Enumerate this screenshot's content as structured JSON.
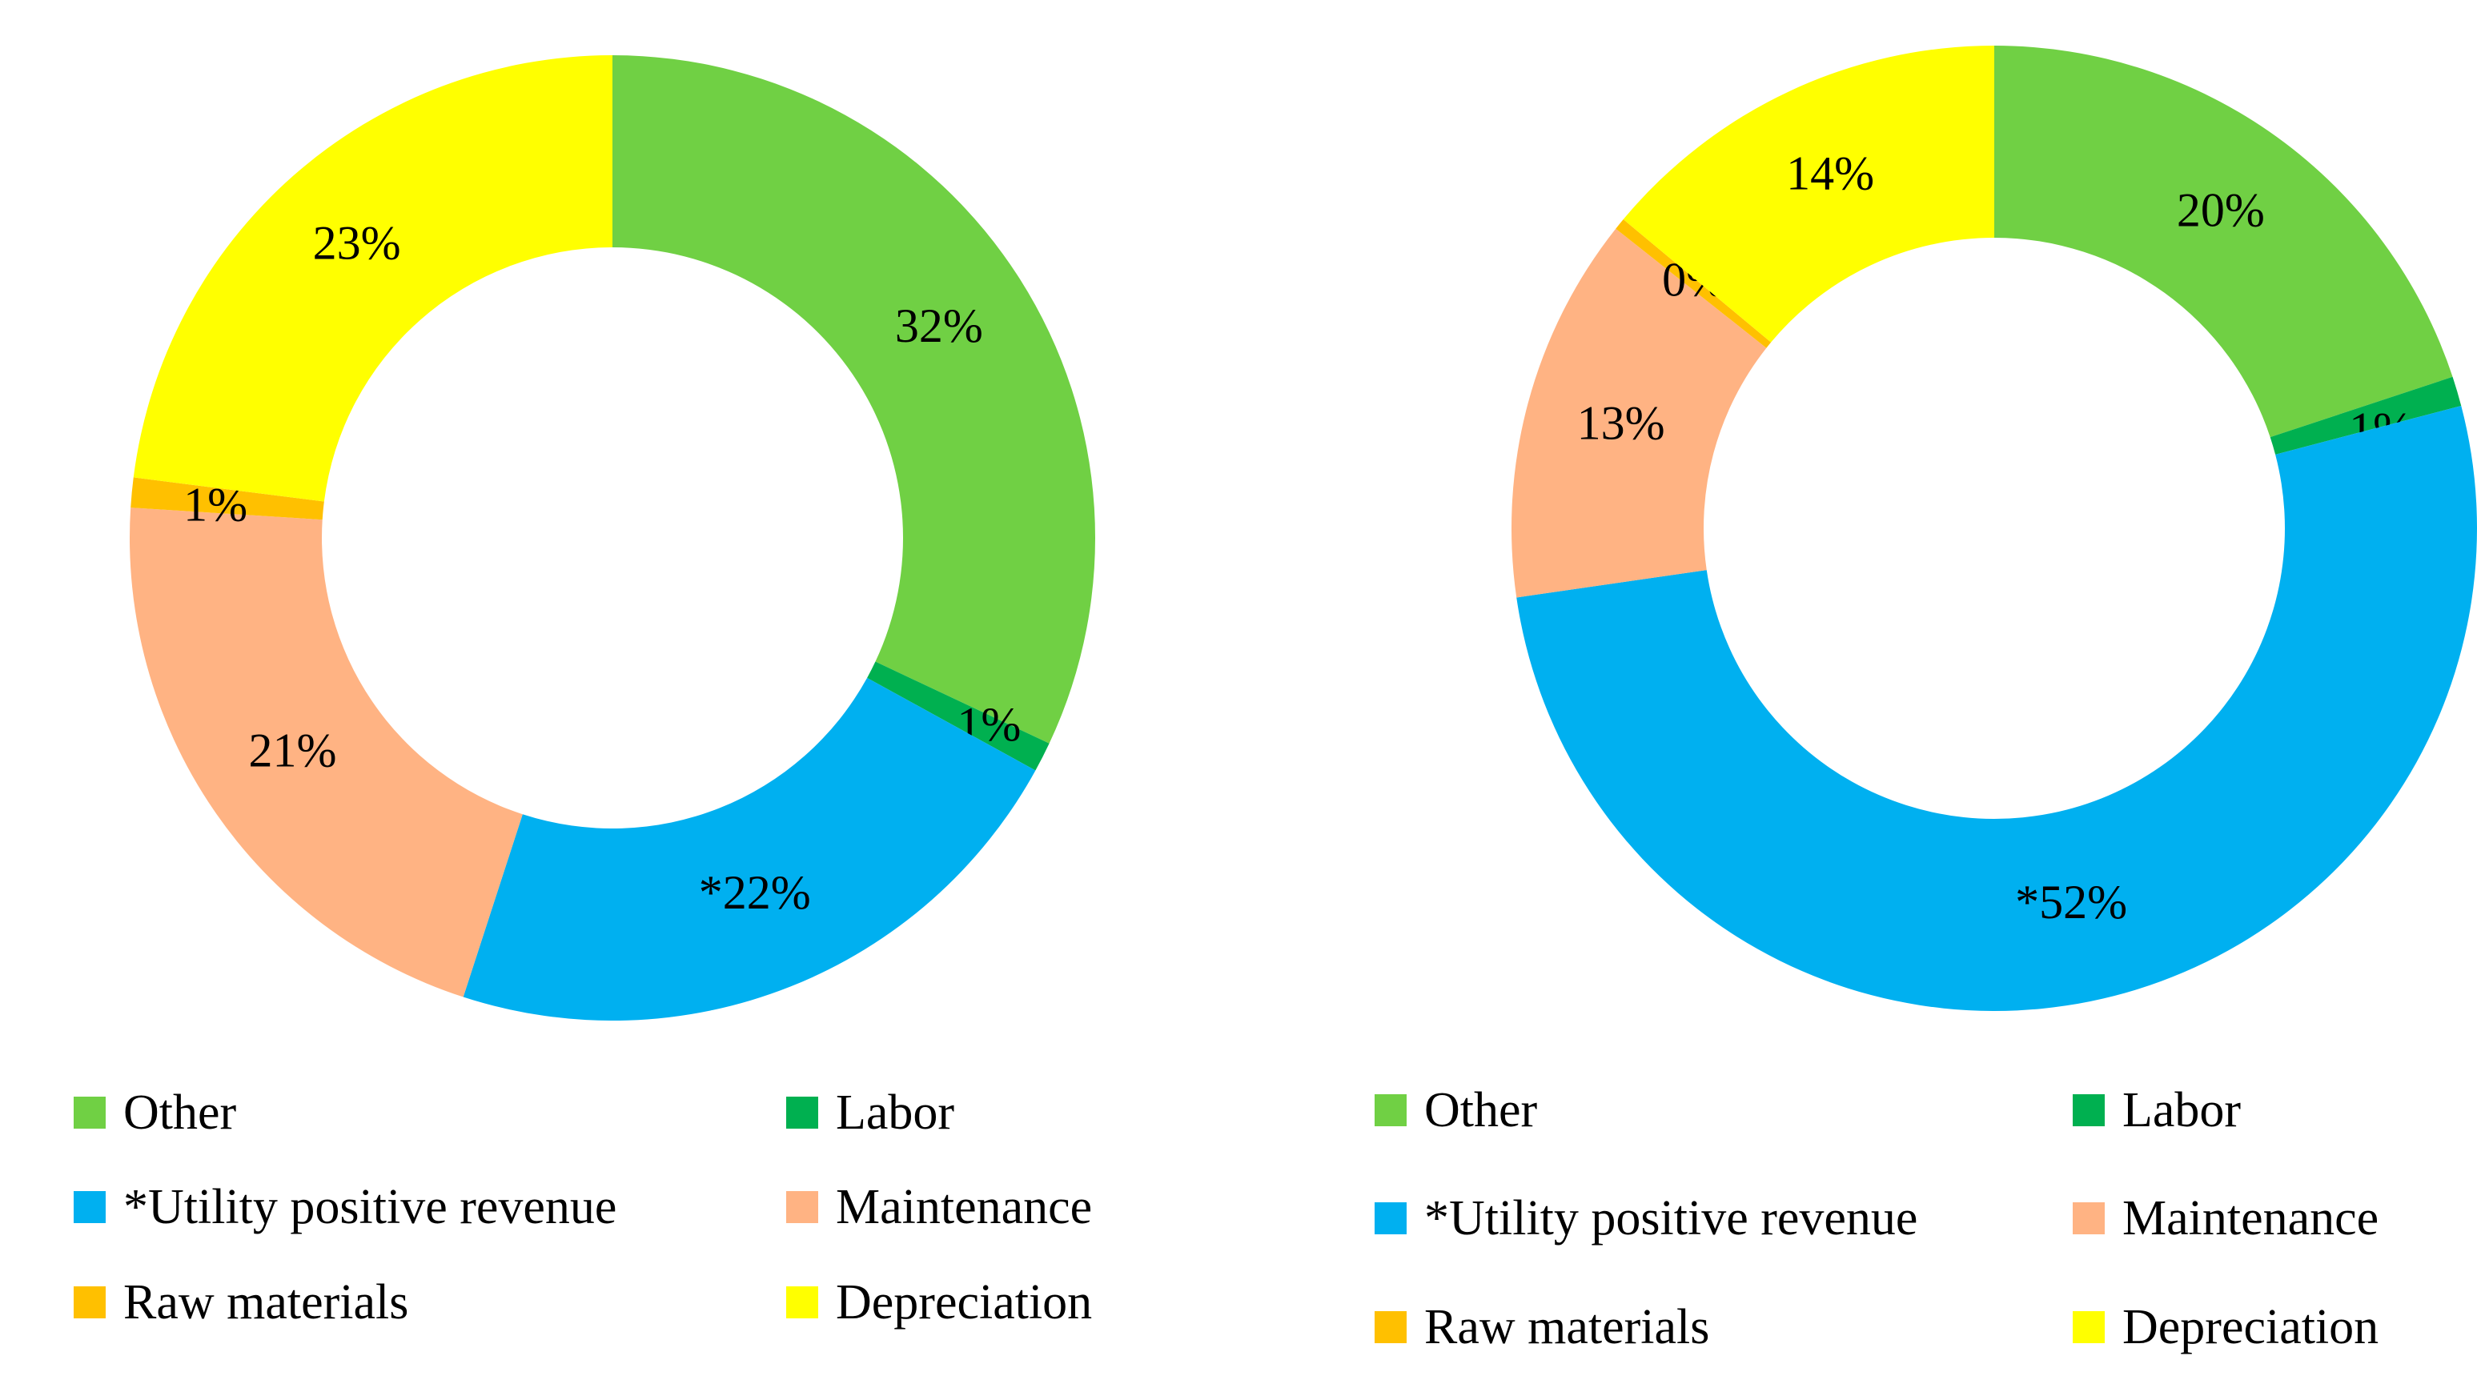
{
  "colors": {
    "other": "#70D044",
    "labor": "#00B050",
    "utility": "#00B0F0",
    "maintenance": "#FFB383",
    "raw_materials": "#FFC000",
    "depreciation": "#FFFF00"
  },
  "chart_data": [
    {
      "type": "pie",
      "subtype": "donut",
      "slices": [
        {
          "key": "other",
          "label": "Other",
          "value": 32,
          "display": "32%"
        },
        {
          "key": "labor",
          "label": "Labor",
          "value": 1,
          "display": "1%"
        },
        {
          "key": "utility",
          "label": "*Utility positive revenue",
          "value": 22,
          "display": "*22%"
        },
        {
          "key": "maintenance",
          "label": "Maintenance",
          "value": 21,
          "display": "21%"
        },
        {
          "key": "raw_materials",
          "label": "Raw materials",
          "value": 1,
          "display": "1%"
        },
        {
          "key": "depreciation",
          "label": "Depreciation",
          "value": 23,
          "display": "23%"
        }
      ],
      "legend": [
        "Other",
        "Labor",
        "*Utility positive revenue",
        "Maintenance",
        "Raw materials",
        "Depreciation"
      ],
      "legend_placement": "bottom"
    },
    {
      "type": "pie",
      "subtype": "donut",
      "slices": [
        {
          "key": "other",
          "label": "Other",
          "value": 20,
          "display": "20%"
        },
        {
          "key": "labor",
          "label": "Labor",
          "value": 1,
          "display": "1%"
        },
        {
          "key": "utility",
          "label": "*Utility positive revenue",
          "value": 52,
          "display": "*52%"
        },
        {
          "key": "maintenance",
          "label": "Maintenance",
          "value": 13,
          "display": "13%"
        },
        {
          "key": "raw_materials",
          "label": "Raw materials",
          "value": 0.4,
          "display": "0%"
        },
        {
          "key": "depreciation",
          "label": "Depreciation",
          "value": 14,
          "display": "14%"
        }
      ],
      "legend": [
        "Other",
        "Labor",
        "*Utility positive revenue",
        "Maintenance",
        "Raw materials",
        "Depreciation"
      ],
      "legend_placement": "bottom"
    }
  ]
}
